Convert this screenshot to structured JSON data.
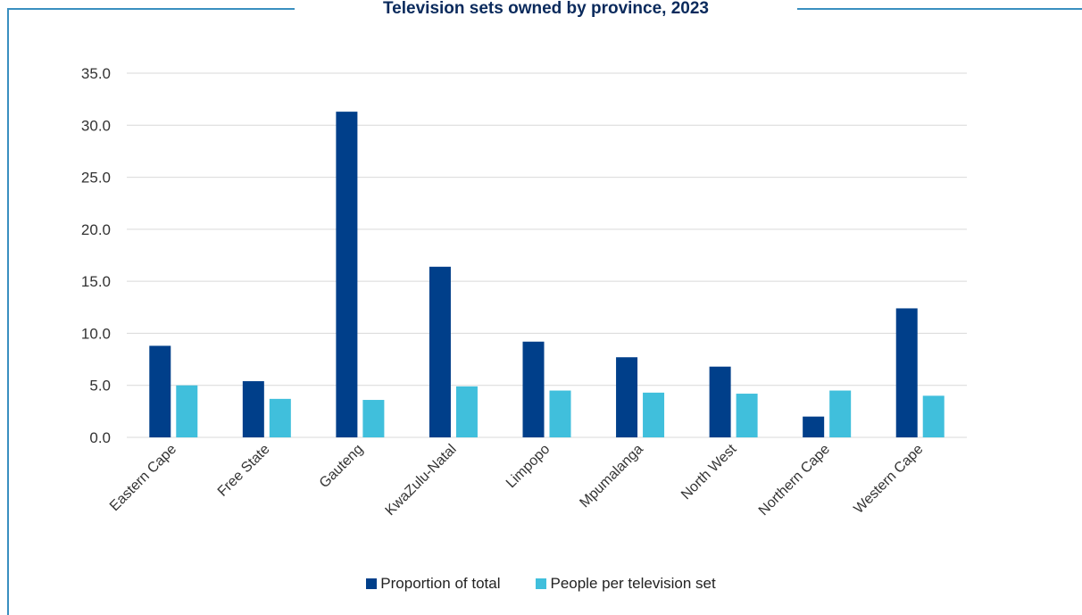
{
  "colors": {
    "frame": "#3a8fc0",
    "title": "#0a2a5c",
    "series1": "#003f8a",
    "series2": "#40bfdc",
    "grid": "#d9d9d9",
    "text": "#333333"
  },
  "chart_data": {
    "type": "bar",
    "title": "Television sets owned by province, 2023",
    "xlabel": "",
    "ylabel": "",
    "ylim": [
      0,
      35
    ],
    "yticks": [
      "0.0",
      "5.0",
      "10.0",
      "15.0",
      "20.0",
      "25.0",
      "30.0",
      "35.0"
    ],
    "grid": true,
    "legend_position": "bottom",
    "categories": [
      "Eastern Cape",
      "Free State",
      "Gauteng",
      "KwaZulu-Natal",
      "Limpopo",
      "Mpumalanga",
      "North West",
      "Northern Cape",
      "Western Cape"
    ],
    "series": [
      {
        "name": "Proportion of total",
        "values": [
          8.8,
          5.4,
          31.3,
          16.4,
          9.2,
          7.7,
          6.8,
          2.0,
          12.4
        ]
      },
      {
        "name": "People per television set",
        "values": [
          5.0,
          3.7,
          3.6,
          4.9,
          4.5,
          4.3,
          4.2,
          4.5,
          4.0
        ]
      }
    ]
  }
}
